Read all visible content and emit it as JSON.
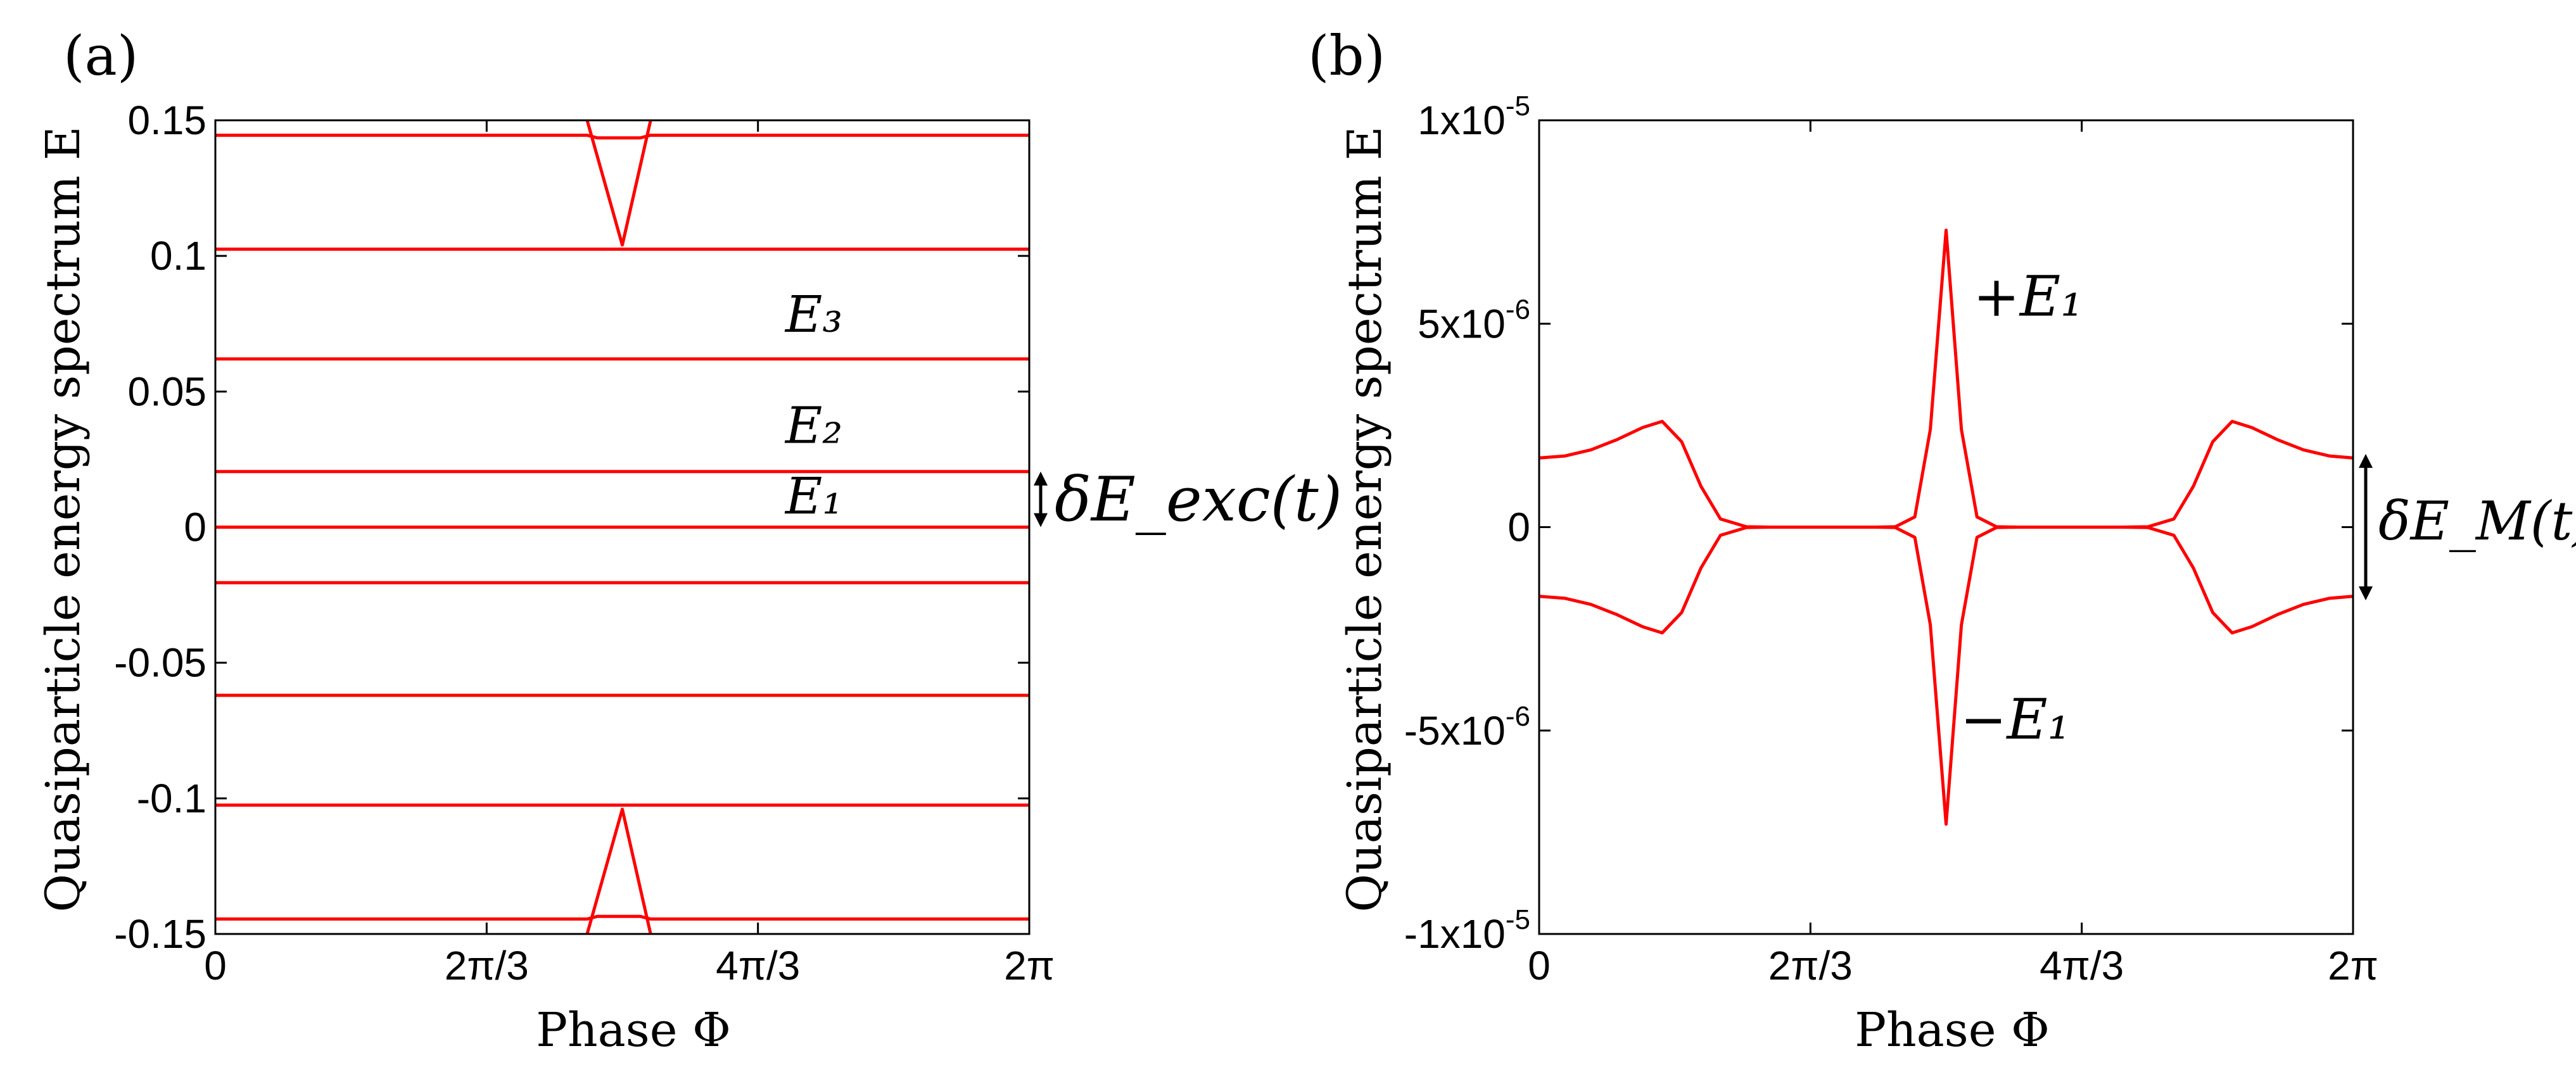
{
  "chart_data": [
    {
      "panel_label": "(a)",
      "type": "line",
      "xlabel": "Phase Φ",
      "ylabel": "Quasiparticle energy spectrum E",
      "xlim": [
        0,
        6.2832
      ],
      "ylim": [
        -0.15,
        0.15
      ],
      "xticks": [
        {
          "v": 0,
          "label": "0"
        },
        {
          "v": 2.0944,
          "label": "2π/3"
        },
        {
          "v": 4.1888,
          "label": "4π/3"
        },
        {
          "v": 6.2832,
          "label": "2π"
        }
      ],
      "yticks": [
        {
          "v": 0.15,
          "label": "0.15"
        },
        {
          "v": 0.1,
          "label": "0.1"
        },
        {
          "v": 0.05,
          "label": "0.05"
        },
        {
          "v": 0,
          "label": "0"
        },
        {
          "v": -0.05,
          "label": "-0.05"
        },
        {
          "v": -0.1,
          "label": "-0.1"
        },
        {
          "v": -0.15,
          "label": "-0.15"
        }
      ],
      "grid": false,
      "color": "#ff0000",
      "series": [
        {
          "x": [
            0,
            2.87,
            2.95,
            3.28,
            3.36,
            6.2832
          ],
          "y": [
            0.1445,
            0.1445,
            0.1435,
            0.1435,
            0.1445,
            0.1445
          ]
        },
        {
          "x": [
            2.87,
            3.1416,
            3.36
          ],
          "y": [
            0.15,
            0.104,
            0.15
          ]
        },
        {
          "x": [
            0,
            6.2832
          ],
          "y": [
            0.1025,
            0.1025
          ]
        },
        {
          "x": [
            0,
            6.2832
          ],
          "y": [
            0.062,
            0.062
          ]
        },
        {
          "x": [
            0,
            6.2832
          ],
          "y": [
            0.0205,
            0.0205
          ]
        },
        {
          "x": [
            0,
            6.2832
          ],
          "y": [
            0,
            0
          ]
        },
        {
          "x": [
            0,
            6.2832
          ],
          "y": [
            -0.0205,
            -0.0205
          ]
        },
        {
          "x": [
            0,
            6.2832
          ],
          "y": [
            -0.062,
            -0.062
          ]
        },
        {
          "x": [
            0,
            6.2832
          ],
          "y": [
            -0.1025,
            -0.1025
          ]
        },
        {
          "x": [
            0,
            2.87,
            2.95,
            3.28,
            3.36,
            6.2832
          ],
          "y": [
            -0.1445,
            -0.1445,
            -0.1435,
            -0.1435,
            -0.1445,
            -0.1445
          ]
        },
        {
          "x": [
            2.87,
            3.1416,
            3.36
          ],
          "y": [
            -0.15,
            -0.104,
            -0.15
          ]
        }
      ],
      "annotations": [
        {
          "text": "E₃",
          "x": 4.4,
          "y": 0.072
        },
        {
          "text": "E₂",
          "x": 4.4,
          "y": 0.031
        },
        {
          "text": "E₁",
          "x": 4.4,
          "y": 0.005
        }
      ],
      "side_label": "δE_exc(t)",
      "side_arrow": [
        0.0205,
        0
      ]
    },
    {
      "panel_label": "(b)",
      "type": "line",
      "xlabel": "Phase Φ",
      "ylabel": "Quasiparticle energy spectrum E",
      "xlim": [
        0,
        6.2832
      ],
      "ylim": [
        -1e-05,
        1e-05
      ],
      "xticks": [
        {
          "v": 0,
          "label": "0"
        },
        {
          "v": 2.0944,
          "label": "2π/3"
        },
        {
          "v": 4.1888,
          "label": "4π/3"
        },
        {
          "v": 6.2832,
          "label": "2π"
        }
      ],
      "yticks": [
        {
          "v": 1e-05,
          "base": "1x10",
          "exp": "-5"
        },
        {
          "v": 5e-06,
          "base": "5x10",
          "exp": "-6"
        },
        {
          "v": 0,
          "base": "0",
          "exp": ""
        },
        {
          "v": -5e-06,
          "base": "-5x10",
          "exp": "-6"
        },
        {
          "v": -1e-05,
          "base": "-1x10",
          "exp": "-5"
        }
      ],
      "grid": false,
      "color": "#ff0000",
      "series": [
        {
          "name": "+E₁",
          "x": [
            0,
            0.2,
            0.4,
            0.6,
            0.8,
            0.95,
            1.1,
            1.25,
            1.4,
            1.6,
            1.8,
            2.0,
            2.3,
            2.6,
            2.75,
            2.9,
            3.02,
            3.1416,
            3.26,
            3.38,
            3.53,
            3.7,
            4.0,
            4.3,
            4.5,
            4.7,
            4.9,
            5.05,
            5.2,
            5.35,
            5.5,
            5.7,
            5.9,
            6.1,
            6.2832
          ],
          "y": [
            1.7e-06,
            1.75e-06,
            1.9e-06,
            2.15e-06,
            2.45e-06,
            2.6e-06,
            2.1e-06,
            1e-06,
            2e-07,
            1e-08,
            0,
            0,
            0,
            0,
            1e-08,
            2.5e-07,
            2.4e-06,
            7.3e-06,
            2.4e-06,
            2.5e-07,
            1e-08,
            0,
            0,
            0,
            0,
            1e-08,
            2e-07,
            1e-06,
            2.1e-06,
            2.6e-06,
            2.45e-06,
            2.15e-06,
            1.9e-06,
            1.75e-06,
            1.7e-06
          ]
        },
        {
          "name": "−E₁",
          "x": [
            0,
            0.2,
            0.4,
            0.6,
            0.8,
            0.95,
            1.1,
            1.25,
            1.4,
            1.6,
            1.8,
            2.0,
            2.3,
            2.6,
            2.75,
            2.9,
            3.02,
            3.1416,
            3.26,
            3.38,
            3.53,
            3.7,
            4.0,
            4.3,
            4.5,
            4.7,
            4.9,
            5.05,
            5.2,
            5.35,
            5.5,
            5.7,
            5.9,
            6.1,
            6.2832
          ],
          "y": [
            -1.7e-06,
            -1.75e-06,
            -1.9e-06,
            -2.15e-06,
            -2.45e-06,
            -2.6e-06,
            -2.1e-06,
            -1e-06,
            -2e-07,
            -1e-08,
            0,
            0,
            0,
            0,
            -1e-08,
            -2.5e-07,
            -2.4e-06,
            -7.3e-06,
            -2.4e-06,
            -2.5e-07,
            -1e-08,
            0,
            0,
            0,
            0,
            -1e-08,
            -2e-07,
            -1e-06,
            -2.1e-06,
            -2.6e-06,
            -2.45e-06,
            -2.15e-06,
            -1.9e-06,
            -1.75e-06,
            -1.7e-06
          ]
        }
      ],
      "annotations": [
        {
          "text": "+E₁",
          "x": 3.35,
          "y": 5.2e-06
        },
        {
          "text": "−E₁",
          "x": 3.25,
          "y": -5.2e-06
        }
      ],
      "side_label": "δE_M(t)",
      "side_arrow": [
        1.8e-06,
        -1.8e-06
      ]
    }
  ]
}
